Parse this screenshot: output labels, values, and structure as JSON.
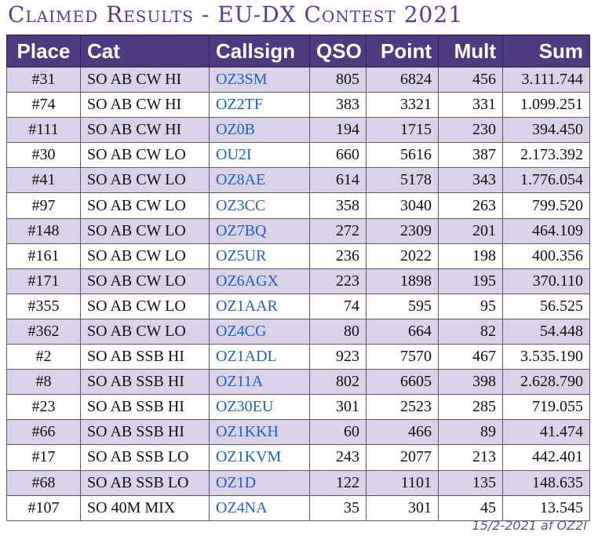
{
  "title": "Claimed Results - EU-DX Contest 2021",
  "headers": [
    "Place",
    "Cat",
    "Callsign",
    "QSO",
    "Point",
    "Mult",
    "Sum"
  ],
  "rows": [
    {
      "place": "#31",
      "cat": "SO AB CW HI",
      "call": "OZ3SM",
      "qso": "805",
      "point": "6824",
      "mult": "456",
      "sum": "3.111.744"
    },
    {
      "place": "#74",
      "cat": "SO AB CW HI",
      "call": "OZ2TF",
      "qso": "383",
      "point": "3321",
      "mult": "331",
      "sum": "1.099.251"
    },
    {
      "place": "#111",
      "cat": "SO AB CW HI",
      "call": "OZ0B",
      "qso": "194",
      "point": "1715",
      "mult": "230",
      "sum": "394.450"
    },
    {
      "place": "#30",
      "cat": "SO AB CW LO",
      "call": "OU2I",
      "qso": "660",
      "point": "5616",
      "mult": "387",
      "sum": "2.173.392"
    },
    {
      "place": "#41",
      "cat": "SO AB CW LO",
      "call": "OZ8AE",
      "qso": "614",
      "point": "5178",
      "mult": "343",
      "sum": "1.776.054"
    },
    {
      "place": "#97",
      "cat": "SO AB CW LO",
      "call": "OZ3CC",
      "qso": "358",
      "point": "3040",
      "mult": "263",
      "sum": "799.520"
    },
    {
      "place": "#148",
      "cat": "SO AB CW LO",
      "call": "OZ7BQ",
      "qso": "272",
      "point": "2309",
      "mult": "201",
      "sum": "464.109"
    },
    {
      "place": "#161",
      "cat": "SO AB CW LO",
      "call": "OZ5UR",
      "qso": "236",
      "point": "2022",
      "mult": "198",
      "sum": "400.356"
    },
    {
      "place": "#171",
      "cat": "SO AB CW LO",
      "call": "OZ6AGX",
      "qso": "223",
      "point": "1898",
      "mult": "195",
      "sum": "370.110"
    },
    {
      "place": "#355",
      "cat": "SO AB CW LO",
      "call": "OZ1AAR",
      "qso": "74",
      "point": "595",
      "mult": "95",
      "sum": "56.525"
    },
    {
      "place": "#362",
      "cat": "SO AB CW LO",
      "call": "OZ4CG",
      "qso": "80",
      "point": "664",
      "mult": "82",
      "sum": "54.448"
    },
    {
      "place": "#2",
      "cat": "SO AB SSB HI",
      "call": "OZ1ADL",
      "qso": "923",
      "point": "7570",
      "mult": "467",
      "sum": "3.535.190"
    },
    {
      "place": "#8",
      "cat": "SO AB SSB HI",
      "call": "OZ11A",
      "qso": "802",
      "point": "6605",
      "mult": "398",
      "sum": "2.628.790"
    },
    {
      "place": "#23",
      "cat": "SO AB SSB HI",
      "call": "OZ30EU",
      "qso": "301",
      "point": "2523",
      "mult": "285",
      "sum": "719.055"
    },
    {
      "place": "#66",
      "cat": "SO AB SSB HI",
      "call": "OZ1KKH",
      "qso": "60",
      "point": "466",
      "mult": "89",
      "sum": "41.474"
    },
    {
      "place": "#17",
      "cat": "SO AB SSB LO",
      "call": "OZ1KVM",
      "qso": "243",
      "point": "2077",
      "mult": "213",
      "sum": "442.401"
    },
    {
      "place": "#68",
      "cat": "SO AB SSB LO",
      "call": "OZ1D",
      "qso": "122",
      "point": "1101",
      "mult": "135",
      "sum": "148.635"
    },
    {
      "place": "#107",
      "cat": "SO 40M MIX",
      "call": "OZ4NA",
      "qso": "35",
      "point": "301",
      "mult": "45",
      "sum": "13.545"
    }
  ],
  "footer": "15/2-2021 af OZ2I",
  "colors": {
    "header_bg": "#4e3a7e",
    "stripe": "#d9d2e8",
    "callsign": "#1f5fbf",
    "title": "#5b3a8a"
  }
}
